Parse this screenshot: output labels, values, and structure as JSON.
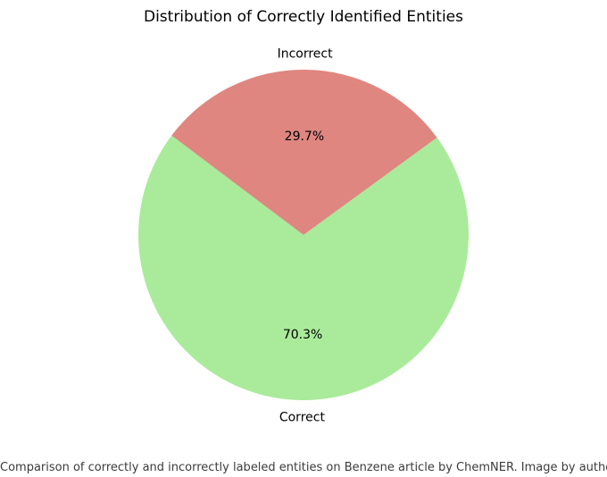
{
  "chart_data": {
    "type": "pie",
    "title": "Distribution of Correctly Identified Entities",
    "slices": [
      {
        "label": "Correct",
        "value": 70.3,
        "pct_label": "70.3%",
        "color": "#a9eb9a"
      },
      {
        "label": "Incorrect",
        "value": 29.7,
        "pct_label": "29.7%",
        "color": "#df8680"
      }
    ],
    "start_angle_deg": 143,
    "direction": "counterclockwise",
    "legend": "none"
  },
  "caption": "Comparison of correctly and incorrectly labeled entities on Benzene article by ChemNER. Image by author."
}
